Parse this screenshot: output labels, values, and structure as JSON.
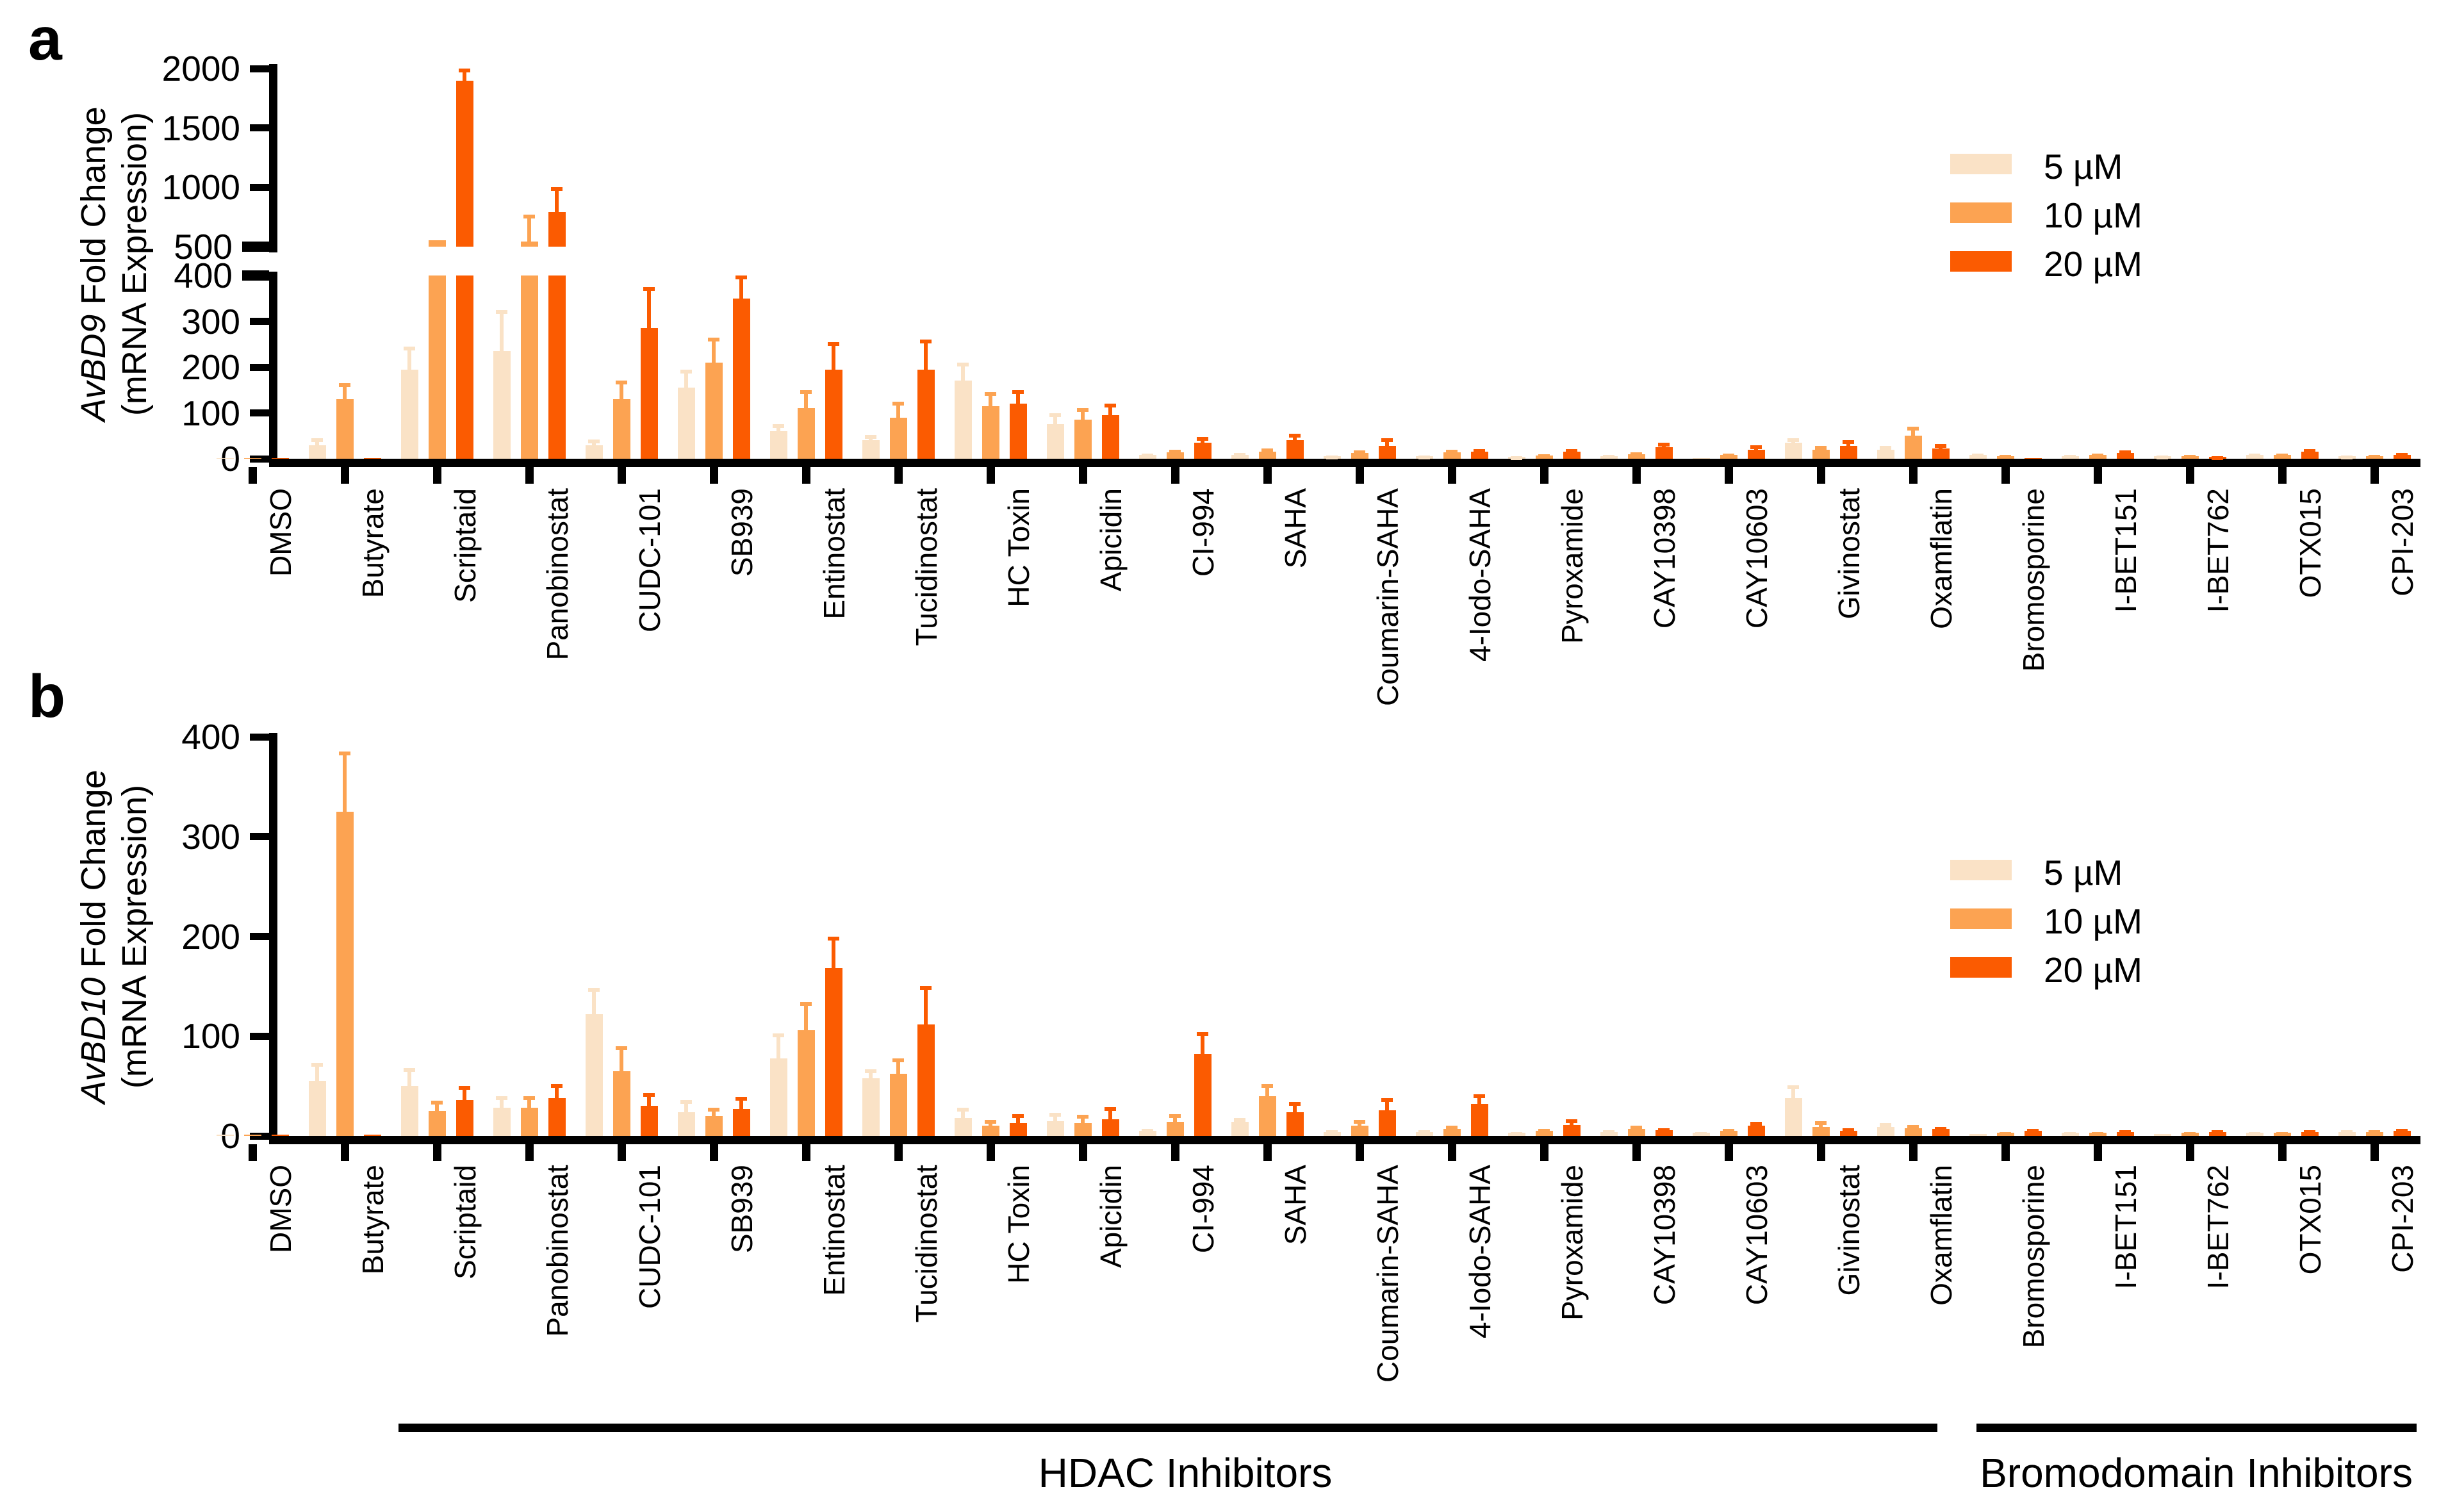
{
  "figure": {
    "panel_a_letter": "a",
    "panel_b_letter": "b"
  },
  "legend": {
    "items": [
      {
        "label": "5 µM",
        "color": "#FAE2C6"
      },
      {
        "label": "10 µM",
        "color": "#FCA352"
      },
      {
        "label": "20 µM",
        "color": "#FB5B01"
      }
    ]
  },
  "sections": [
    {
      "label": "HDAC Inhibitors",
      "from_category": "Scriptaid",
      "to_category": "Oxamflatin"
    },
    {
      "label": "Bromodomain Inhibitors",
      "from_category": "Bromosporine",
      "to_category": "CPI-203"
    }
  ],
  "chart_data": [
    {
      "type": "bar",
      "panel_letter": "a",
      "ylabel_gene": "AvBD9",
      "ylabel_rest": " Fold Change",
      "ylabel_line2": "(mRNA Expression)",
      "y_axis": {
        "broken": true,
        "segments": [
          {
            "range": [
              500,
              2000
            ],
            "ticks": [
              500,
              1000,
              1500,
              2000
            ]
          },
          {
            "range": [
              0,
              400
            ],
            "ticks": [
              0,
              100,
              200,
              300,
              400
            ]
          }
        ]
      },
      "categories": [
        "DMSO",
        "Butyrate",
        "Scriptaid",
        "Panobinostat",
        "CUDC-101",
        "SB939",
        "Entinostat",
        "Tucidinostat",
        "HC Toxin",
        "Apicidin",
        "CI-994",
        "SAHA",
        "Coumarin-SAHA",
        "4-Iodo-SAHA",
        "Pyroxamide",
        "CAY10398",
        "CAY10603",
        "Givinostat",
        "Oxamflatin",
        "Bromosporine",
        "I-BET151",
        "I-BET762",
        "OTX015",
        "CPI-203"
      ],
      "series": [
        {
          "name": "5 µM",
          "color": "#FAE2C6",
          "values": [
            2,
            30,
            195,
            235,
            30,
            155,
            60,
            40,
            170,
            75,
            8,
            9,
            5,
            5,
            4,
            6,
            2,
            35,
            20,
            8,
            6,
            5,
            8,
            5
          ],
          "errors": [
            1,
            15,
            50,
            90,
            12,
            40,
            15,
            12,
            40,
            25,
            3,
            3,
            2,
            2,
            2,
            2,
            1,
            10,
            8,
            3,
            2,
            2,
            3,
            2
          ]
        },
        {
          "name": "10 µM",
          "color": "#FCA352",
          "values": [
            1,
            130,
            555,
            545,
            130,
            210,
            110,
            90,
            115,
            85,
            14,
            16,
            13,
            14,
            7,
            10,
            8,
            20,
            50,
            6,
            8,
            6,
            8,
            6
          ],
          "errors": [
            1,
            35,
            0,
            225,
            40,
            55,
            40,
            35,
            30,
            25,
            5,
            6,
            5,
            5,
            3,
            4,
            3,
            8,
            20,
            2,
            3,
            2,
            3,
            2
          ]
        },
        {
          "name": "20 µM",
          "color": "#FB5B01",
          "values": [
            1,
            1,
            1900,
            790,
            285,
            350,
            195,
            195,
            120,
            95,
            35,
            40,
            28,
            15,
            15,
            25,
            20,
            28,
            22,
            2,
            12,
            4,
            15,
            8
          ],
          "errors": [
            1,
            0,
            100,
            210,
            90,
            50,
            60,
            65,
            30,
            25,
            13,
            15,
            17,
            6,
            6,
            10,
            10,
            12,
            10,
            1,
            6,
            2,
            6,
            4
          ]
        }
      ]
    },
    {
      "type": "bar",
      "panel_letter": "b",
      "ylabel_gene": "AvBD10",
      "ylabel_rest": " Fold Change",
      "ylabel_line2": "(mRNA Expression)",
      "y_axis": {
        "broken": false,
        "segments": [
          {
            "range": [
              0,
              400
            ],
            "ticks": [
              0,
              100,
              200,
              300,
              400
            ]
          }
        ]
      },
      "categories": [
        "DMSO",
        "Butyrate",
        "Scriptaid",
        "Panobinostat",
        "CUDC-101",
        "SB939",
        "Entinostat",
        "Tucidinostat",
        "HC Toxin",
        "Apicidin",
        "CI-994",
        "SAHA",
        "Coumarin-SAHA",
        "4-Iodo-SAHA",
        "Pyroxamide",
        "CAY10398",
        "CAY10603",
        "Givinostat",
        "Oxamflatin",
        "Bromosporine",
        "I-BET151",
        "I-BET762",
        "OTX015",
        "CPI-203"
      ],
      "series": [
        {
          "name": "5 µM",
          "color": "#FAE2C6",
          "values": [
            1,
            55,
            50,
            28,
            122,
            24,
            78,
            58,
            18,
            15,
            5,
            14,
            4,
            4,
            3,
            4,
            3,
            38,
            9,
            2,
            3,
            2,
            3,
            4
          ],
          "errors": [
            1,
            18,
            18,
            12,
            26,
            12,
            25,
            9,
            10,
            8,
            2,
            4,
            2,
            2,
            1,
            2,
            1,
            13,
            4,
            1,
            1,
            1,
            1,
            2
          ]
        },
        {
          "name": "10 µM",
          "color": "#FCA352",
          "values": [
            1,
            325,
            25,
            28,
            65,
            20,
            106,
            62,
            10,
            13,
            14,
            40,
            10,
            7,
            5,
            7,
            5,
            9,
            8,
            3,
            3,
            3,
            3,
            4
          ],
          "errors": [
            1,
            60,
            10,
            12,
            25,
            8,
            28,
            16,
            6,
            8,
            8,
            12,
            6,
            3,
            2,
            3,
            2,
            6,
            3,
            1,
            1,
            1,
            1,
            2
          ]
        },
        {
          "name": "20 µM",
          "color": "#FB5B01",
          "values": [
            1,
            1,
            36,
            38,
            30,
            27,
            168,
            112,
            13,
            17,
            82,
            24,
            26,
            32,
            11,
            6,
            10,
            5,
            7,
            5,
            4,
            4,
            4,
            5
          ],
          "errors": [
            1,
            0,
            14,
            14,
            13,
            12,
            32,
            38,
            9,
            12,
            22,
            10,
            12,
            10,
            6,
            2,
            4,
            3,
            2,
            2,
            2,
            2,
            2,
            2
          ]
        }
      ]
    }
  ]
}
